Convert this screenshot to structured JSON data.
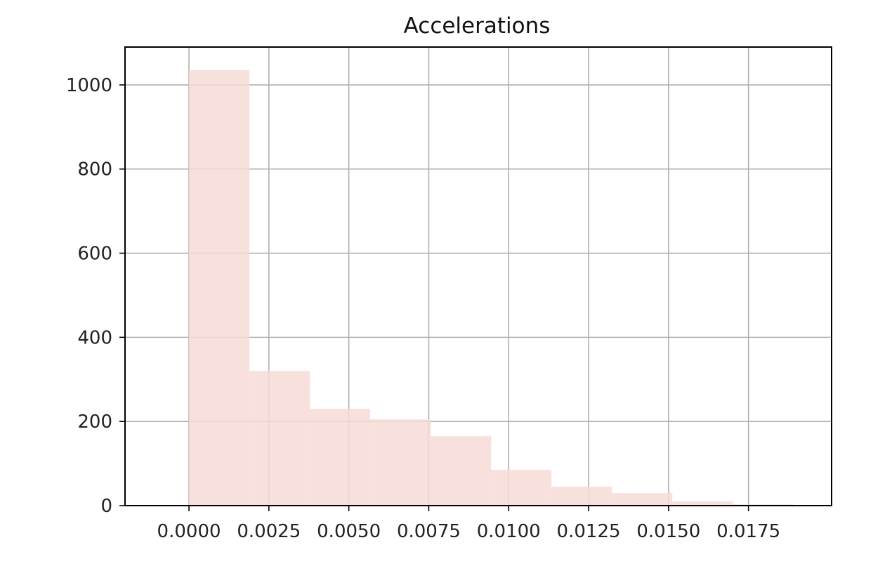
{
  "chart_data": {
    "type": "bar",
    "subtype": "histogram",
    "title": "Accelerations",
    "xlabel": "",
    "ylabel": "",
    "bin_edges": [
      0.0,
      0.00189,
      0.00378,
      0.00567,
      0.00756,
      0.00945,
      0.01134,
      0.01323,
      0.01512,
      0.01701,
      0.0189
    ],
    "values": [
      1035,
      320,
      230,
      205,
      165,
      85,
      45,
      30,
      10,
      3
    ],
    "xlim": [
      -0.002,
      0.0201
    ],
    "ylim": [
      0,
      1090
    ],
    "x_ticks": [
      {
        "value": 0.0,
        "label": "0.0000"
      },
      {
        "value": 0.0025,
        "label": "0.0025"
      },
      {
        "value": 0.005,
        "label": "0.0050"
      },
      {
        "value": 0.0075,
        "label": "0.0075"
      },
      {
        "value": 0.01,
        "label": "0.0100"
      },
      {
        "value": 0.0125,
        "label": "0.0125"
      },
      {
        "value": 0.015,
        "label": "0.0150"
      },
      {
        "value": 0.0175,
        "label": "0.0175"
      }
    ],
    "y_ticks": [
      {
        "value": 0,
        "label": "0"
      },
      {
        "value": 200,
        "label": "200"
      },
      {
        "value": 400,
        "label": "400"
      },
      {
        "value": 600,
        "label": "600"
      },
      {
        "value": 800,
        "label": "800"
      },
      {
        "value": 1000,
        "label": "1000"
      }
    ],
    "grid": true,
    "legend": "none",
    "colors": {
      "bar_fill": "#f7dad7",
      "grid": "#b0b0b0",
      "axes": "#000000",
      "text": "#222222"
    }
  }
}
